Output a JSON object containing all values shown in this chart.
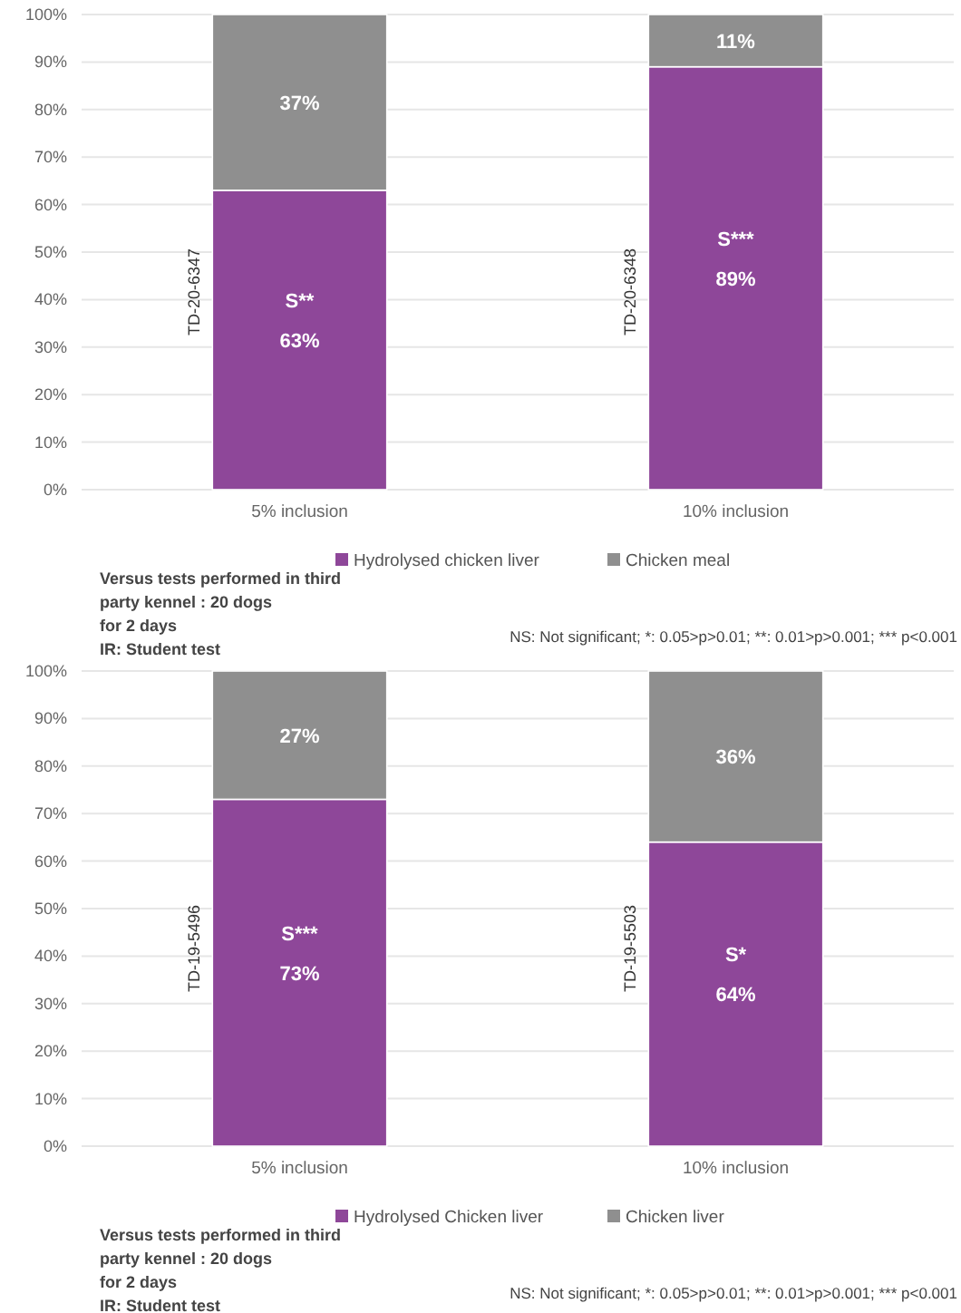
{
  "chart_data": [
    {
      "type": "bar",
      "stacked": true,
      "categories": [
        "5% inclusion",
        "10% inclusion"
      ],
      "series": [
        {
          "name": "Hydrolysed chicken liver",
          "color": "#8e4799",
          "values": [
            63,
            89
          ],
          "value_labels": [
            "63%",
            "89%"
          ]
        },
        {
          "name": "Chicken meal",
          "color": "#8f8f8f",
          "values": [
            37,
            11
          ],
          "value_labels": [
            "37%",
            "11%"
          ]
        }
      ],
      "ylim": [
        0,
        100
      ],
      "yticks": [
        {
          "value": 0,
          "label": "0%"
        },
        {
          "value": 10,
          "label": "10%"
        },
        {
          "value": 20,
          "label": "20%"
        },
        {
          "value": 30,
          "label": "30%"
        },
        {
          "value": 40,
          "label": "40%"
        },
        {
          "value": 50,
          "label": "50%"
        },
        {
          "value": 60,
          "label": "60%"
        },
        {
          "value": 70,
          "label": "70%"
        },
        {
          "value": 80,
          "label": "80%"
        },
        {
          "value": 90,
          "label": "90%"
        },
        {
          "value": 100,
          "label": "100%"
        }
      ],
      "grid": "y",
      "legend": "bottom",
      "annotations": [
        "TD-20-6347",
        "S**",
        "TD-20-6348",
        "S***",
        "Versus tests performed in third",
        "party kennel : 20 dogs",
        "for 2 days",
        "IR: Student test",
        "NS: Not significant; *: 0.05>p>0.01; **: 0.01>p>0.001; *** p<0.001"
      ]
    },
    {
      "type": "bar",
      "stacked": true,
      "categories": [
        "5% inclusion",
        "10% inclusion"
      ],
      "series": [
        {
          "name": "Hydrolysed Chicken liver",
          "color": "#8e4799",
          "values": [
            73,
            64
          ],
          "value_labels": [
            "73%",
            "64%"
          ]
        },
        {
          "name": "Chicken liver",
          "color": "#8f8f8f",
          "values": [
            27,
            36
          ],
          "value_labels": [
            "27%",
            "36%"
          ]
        }
      ],
      "ylim": [
        0,
        100
      ],
      "yticks": [
        {
          "value": 0,
          "label": "0%"
        },
        {
          "value": 10,
          "label": "10%"
        },
        {
          "value": 20,
          "label": "20%"
        },
        {
          "value": 30,
          "label": "30%"
        },
        {
          "value": 40,
          "label": "40%"
        },
        {
          "value": 50,
          "label": "50%"
        },
        {
          "value": 60,
          "label": "60%"
        },
        {
          "value": 70,
          "label": "70%"
        },
        {
          "value": 80,
          "label": "80%"
        },
        {
          "value": 90,
          "label": "90%"
        },
        {
          "value": 100,
          "label": "100%"
        }
      ],
      "grid": "y",
      "legend": "bottom",
      "annotations": [
        "TD-19-5496",
        "S***",
        "TD-19-5503",
        "S*",
        "Versus tests performed in third",
        "party kennel : 20 dogs",
        "for 2 days",
        "IR: Student test",
        "NS: Not significant; *: 0.05>p>0.01; **: 0.01>p>0.001; *** p<0.001"
      ]
    }
  ]
}
